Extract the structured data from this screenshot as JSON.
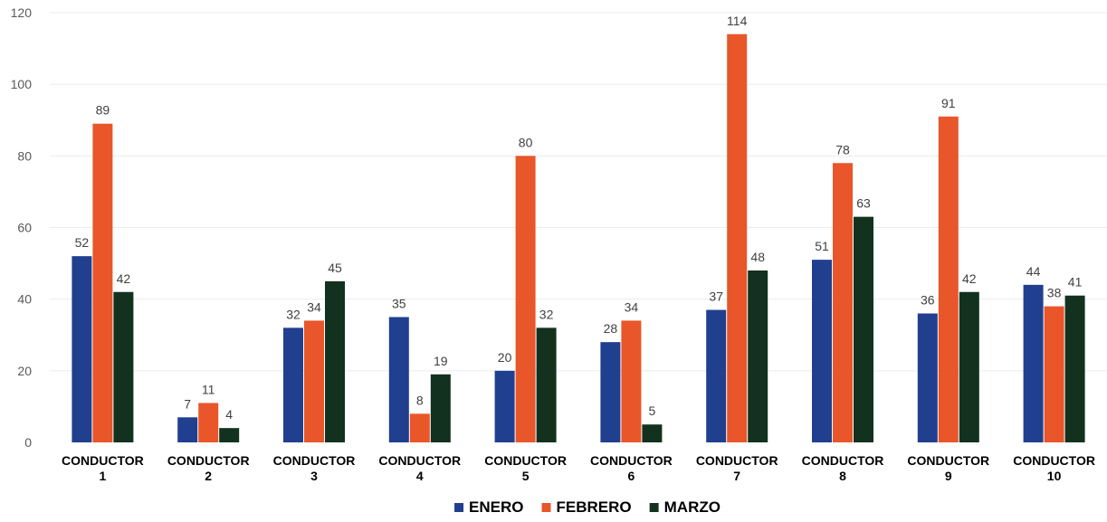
{
  "chart_data": {
    "type": "bar",
    "categories": [
      [
        "CONDUCTOR",
        "1"
      ],
      [
        "CONDUCTOR",
        "2"
      ],
      [
        "CONDUCTOR",
        "3"
      ],
      [
        "CONDUCTOR",
        "4"
      ],
      [
        "CONDUCTOR",
        "5"
      ],
      [
        "CONDUCTOR",
        "6"
      ],
      [
        "CONDUCTOR",
        "7"
      ],
      [
        "CONDUCTOR",
        "8"
      ],
      [
        "CONDUCTOR",
        "9"
      ],
      [
        "CONDUCTOR",
        "10"
      ]
    ],
    "series": [
      {
        "name": "ENERO",
        "color": "#203f8f",
        "values": [
          52,
          7,
          32,
          35,
          20,
          28,
          37,
          51,
          36,
          44
        ]
      },
      {
        "name": "FEBRERO",
        "color": "#e8562a",
        "values": [
          89,
          11,
          34,
          8,
          80,
          34,
          114,
          78,
          91,
          38
        ]
      },
      {
        "name": "MARZO",
        "color": "#12321f",
        "values": [
          42,
          4,
          45,
          19,
          32,
          5,
          48,
          63,
          42,
          41
        ]
      }
    ],
    "yticks": [
      0,
      20,
      40,
      60,
      80,
      100,
      120
    ],
    "ylim": [
      0,
      120
    ],
    "grid": true,
    "legend_position": "bottom",
    "data_labels": true
  }
}
